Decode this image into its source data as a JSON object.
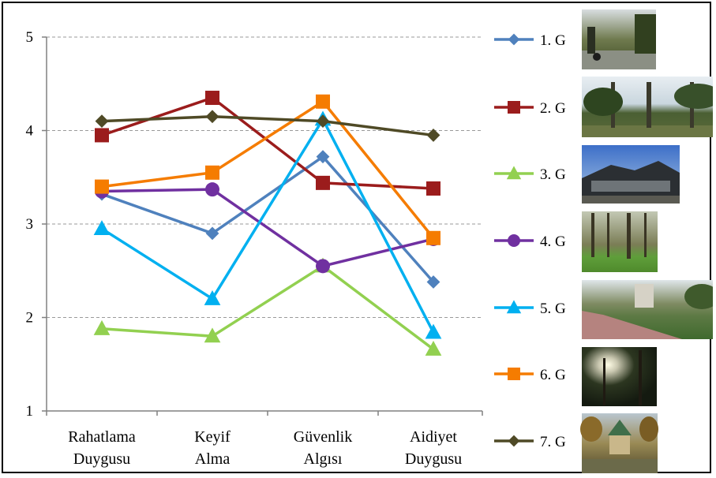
{
  "chart_data": {
    "type": "line",
    "categories": [
      "Rahatlama Duygusu",
      "Keyif Alma",
      "Güvenlik Algısı",
      "Aidiyet Duygusu"
    ],
    "category_lines": [
      [
        "Rahatlama",
        "Duygusu"
      ],
      [
        "Keyif",
        "Alma"
      ],
      [
        "Güvenlik",
        "Algısı"
      ],
      [
        "Aidiyet",
        "Duygusu"
      ]
    ],
    "ylim": [
      1,
      5
    ],
    "yticks": [
      "1",
      "2",
      "3",
      "4",
      "5"
    ],
    "grid": "horizontal dashed",
    "legend_position": "right",
    "series": [
      {
        "name": "1. G",
        "color": "#4f81bd",
        "marker": "diamond",
        "values": [
          3.32,
          2.9,
          3.72,
          2.38
        ],
        "photo": "park-entrance-photo"
      },
      {
        "name": "2. G",
        "color": "#9b1c1c",
        "marker": "square",
        "values": [
          3.95,
          4.35,
          3.44,
          3.38
        ],
        "photo": "park-trees-photo"
      },
      {
        "name": "3. G",
        "color": "#92d050",
        "marker": "triangle",
        "values": [
          1.88,
          1.8,
          2.55,
          1.66
        ],
        "photo": "building-photo"
      },
      {
        "name": "4. G",
        "color": "#7030a0",
        "marker": "circle",
        "values": [
          3.35,
          3.37,
          2.55,
          2.84
        ],
        "photo": "forest-photo"
      },
      {
        "name": "5. G",
        "color": "#00b0f0",
        "marker": "triangle",
        "values": [
          2.95,
          2.2,
          4.12,
          1.84
        ],
        "photo": "park-path-photo"
      },
      {
        "name": "6. G",
        "color": "#f57c00",
        "marker": "square",
        "values": [
          3.4,
          3.55,
          4.31,
          2.85
        ],
        "photo": "sunlit-trees-photo"
      },
      {
        "name": "7. G",
        "color": "#4f4a26",
        "marker": "diamond",
        "values": [
          4.1,
          4.15,
          4.1,
          3.95
        ],
        "photo": "gazebo-photo"
      }
    ]
  }
}
